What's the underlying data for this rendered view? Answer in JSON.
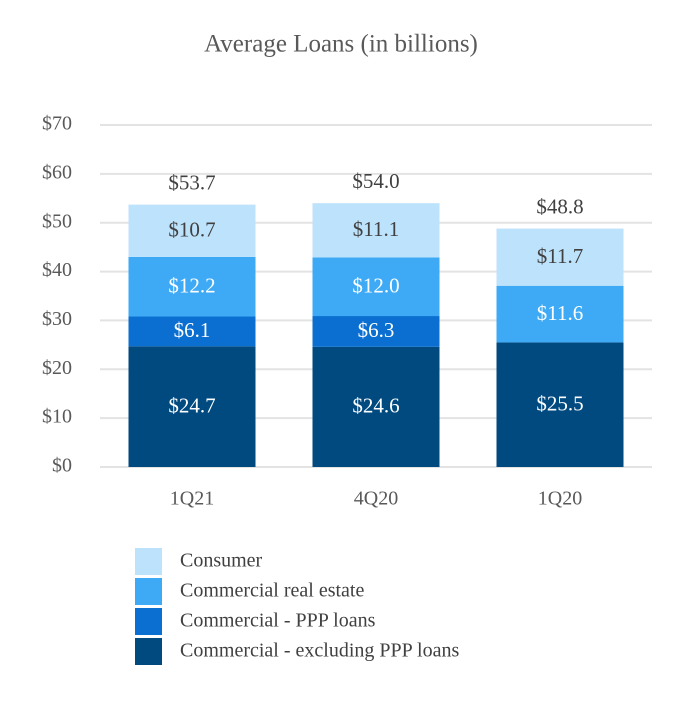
{
  "chart_data": {
    "type": "stacked_bar",
    "title": "Average Loans (in billions)",
    "categories": [
      "1Q21",
      "4Q20",
      "1Q20"
    ],
    "series": [
      {
        "name": "Commercial - excluding PPP loans",
        "color": "#004a80",
        "values": [
          24.7,
          24.6,
          25.5
        ],
        "value_labels": [
          "$24.7",
          "$24.6",
          "$25.5"
        ]
      },
      {
        "name": "Commercial - PPP loans",
        "color": "#0a6fd1",
        "values": [
          6.1,
          6.3,
          null
        ],
        "value_labels": [
          "$6.1",
          "$6.3",
          null
        ]
      },
      {
        "name": "Commercial real estate",
        "color": "#3eaaf5",
        "values": [
          12.2,
          12.0,
          11.6
        ],
        "value_labels": [
          "$12.2",
          "$12.0",
          "$11.6"
        ]
      },
      {
        "name": "Consumer",
        "color": "#bde2fb",
        "values": [
          10.7,
          11.1,
          11.7
        ],
        "value_labels": [
          "$10.7",
          "$11.1",
          "$11.7"
        ]
      }
    ],
    "totals": [
      53.7,
      54.0,
      48.8
    ],
    "total_labels": [
      "$53.7",
      "$54.0",
      "$48.8"
    ],
    "ylim": [
      0,
      70
    ],
    "yticks": [
      {
        "value": 0,
        "label": "$0"
      },
      {
        "value": 10,
        "label": "$10"
      },
      {
        "value": 20,
        "label": "$20"
      },
      {
        "value": 30,
        "label": "$30"
      },
      {
        "value": 40,
        "label": "$40"
      },
      {
        "value": 50,
        "label": "$50"
      },
      {
        "value": 60,
        "label": "$60"
      },
      {
        "value": 70,
        "label": "$70"
      }
    ],
    "grid": true,
    "legend": "bottom"
  }
}
